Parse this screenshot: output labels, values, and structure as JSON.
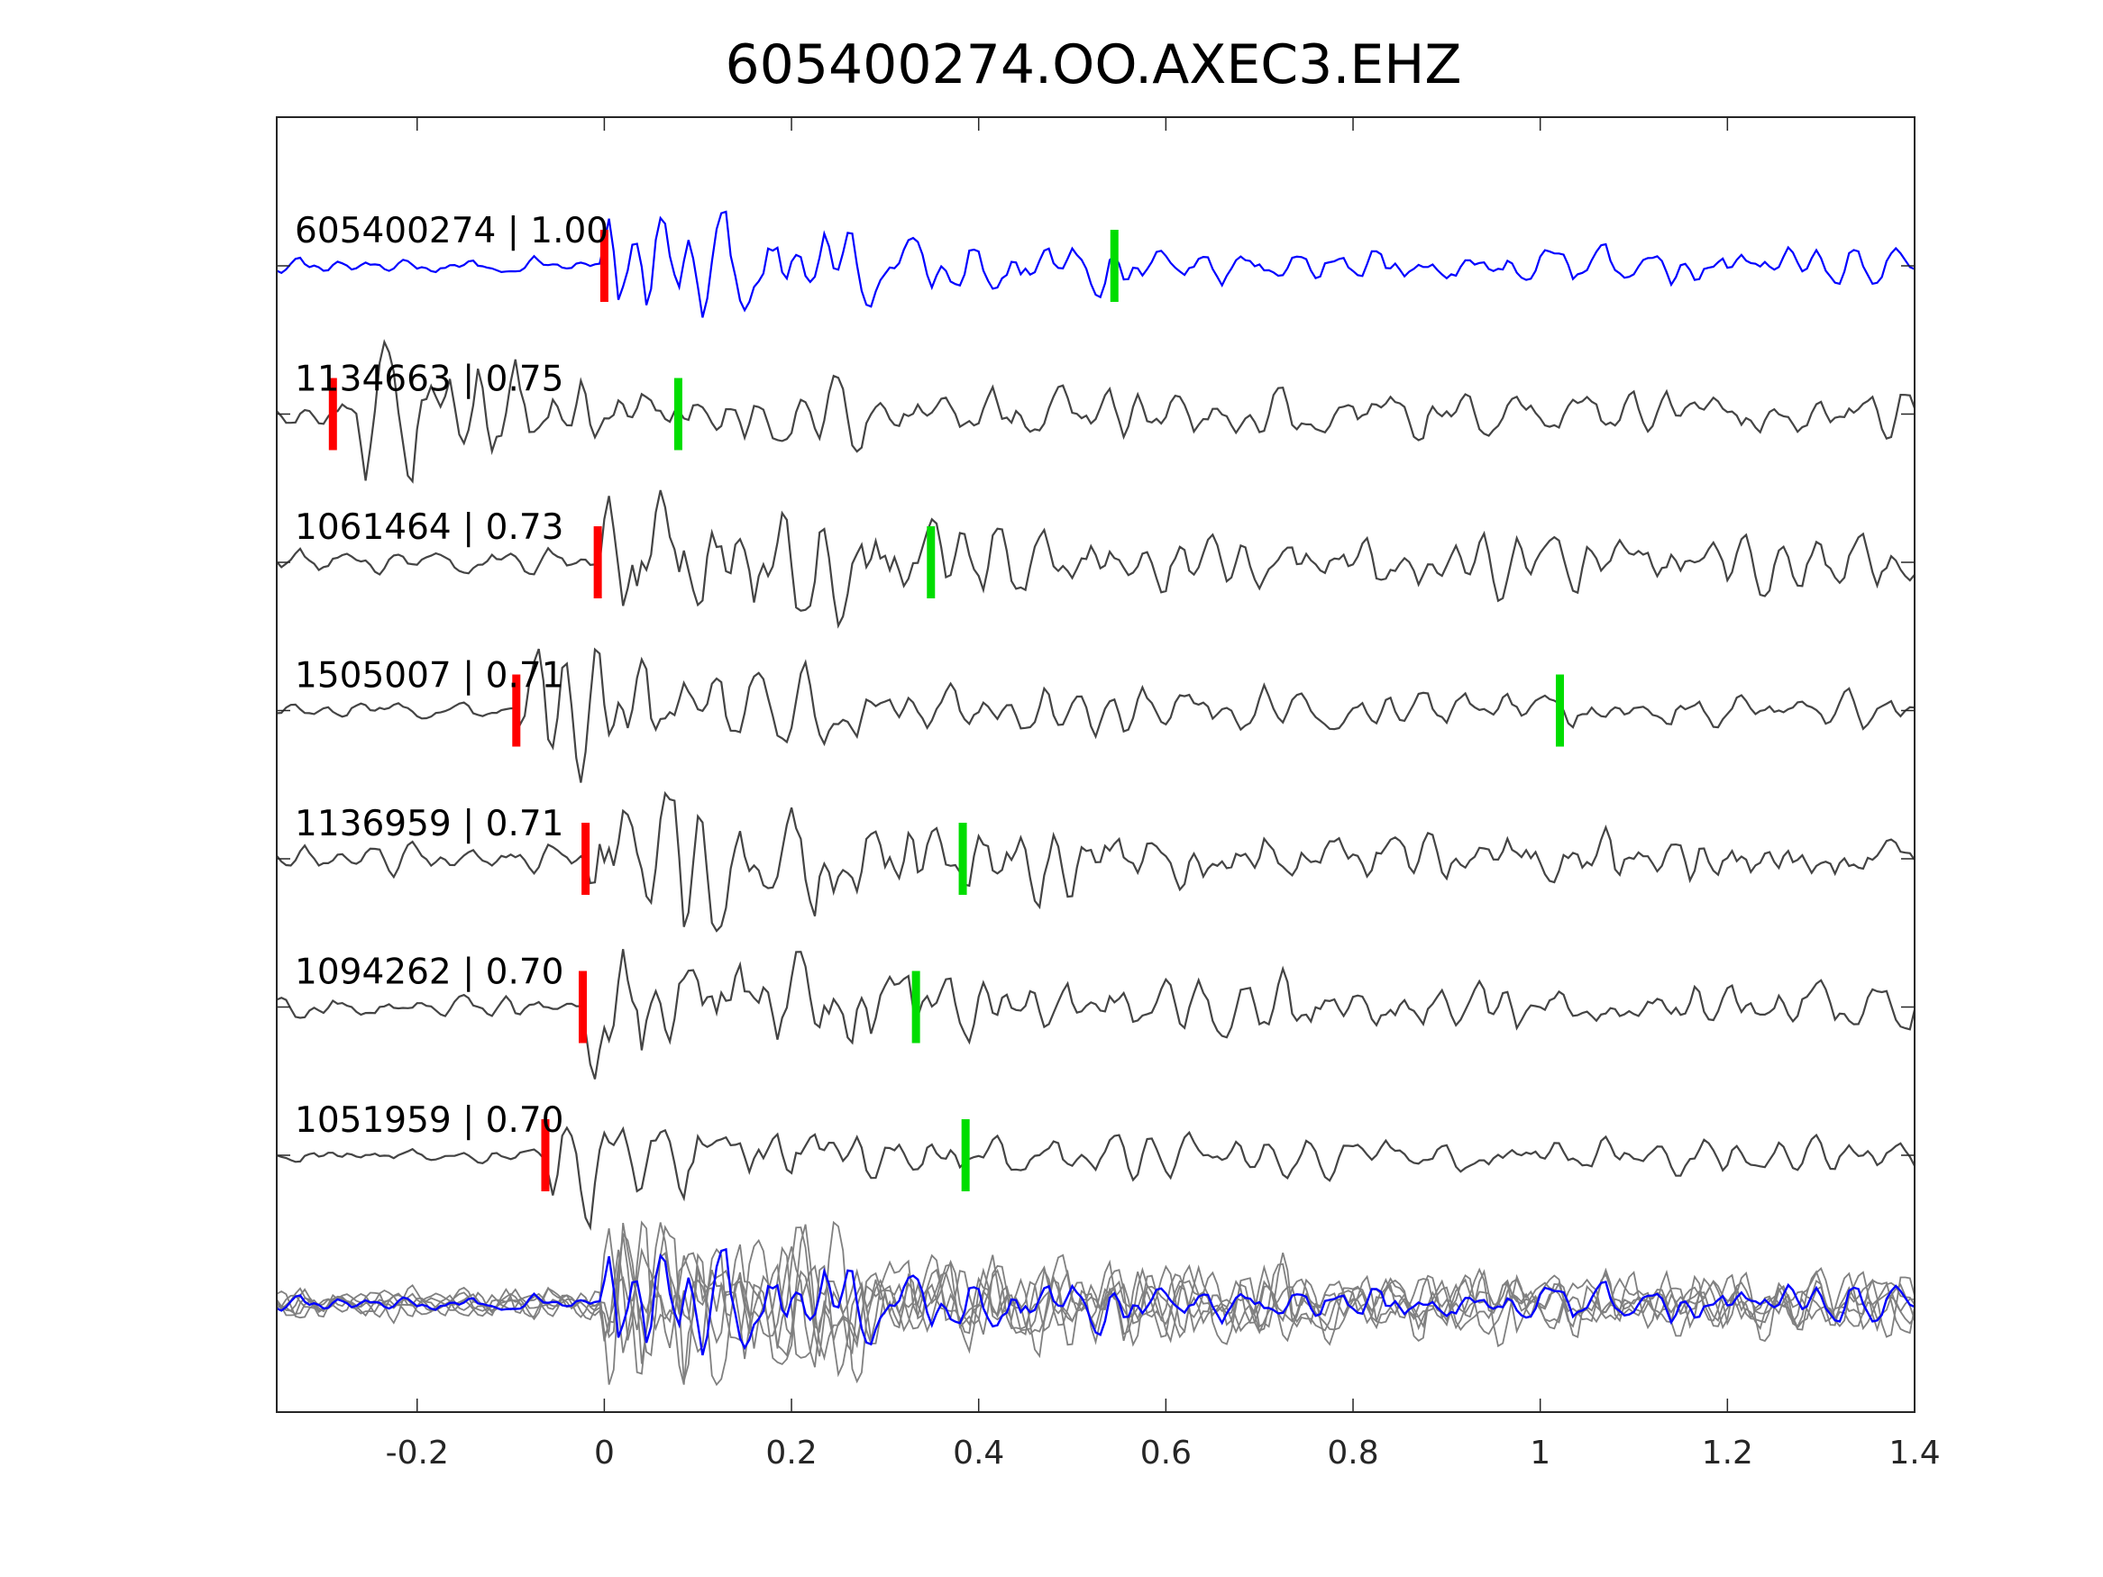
{
  "chart_data": {
    "type": "line",
    "title": "605400274.OO.AXEC3.EHZ",
    "xlabel": "",
    "ylabel": "",
    "xlim": [
      -0.35,
      1.4
    ],
    "xticks": [
      "-0.2",
      "0",
      "0.2",
      "0.4",
      "0.6",
      "0.8",
      "1",
      "1.2",
      "1.4"
    ],
    "xtick_values": [
      -0.2,
      0,
      0.2,
      0.4,
      0.6,
      0.8,
      1,
      1.2,
      1.4
    ],
    "grid": false,
    "colors": {
      "template": "#0000ff",
      "trace": "#444444",
      "stack": "#808080",
      "p_pick": "#ff0000",
      "s_pick": "#00dd00",
      "axis": "#262626"
    },
    "traces": [
      {
        "label": "605400274 | 1.00",
        "id": "605400274",
        "cc": 1.0,
        "template": true,
        "p_pick": 0.0,
        "s_pick": 0.545
      },
      {
        "label": "1134663 | 0.75",
        "id": "1134663",
        "cc": 0.75,
        "template": false,
        "p_pick": -0.29,
        "s_pick": 0.079
      },
      {
        "label": "1061464 | 0.73",
        "id": "1061464",
        "cc": 0.73,
        "template": false,
        "p_pick": -0.007,
        "s_pick": 0.349
      },
      {
        "label": "1505007 | 0.71",
        "id": "1505007",
        "cc": 0.71,
        "template": false,
        "p_pick": -0.094,
        "s_pick": 1.021
      },
      {
        "label": "1136959 | 0.71",
        "id": "1136959",
        "cc": 0.71,
        "template": false,
        "p_pick": -0.02,
        "s_pick": 0.383
      },
      {
        "label": "1094262 | 0.70",
        "id": "1094262",
        "cc": 0.7,
        "template": false,
        "p_pick": -0.023,
        "s_pick": 0.333
      },
      {
        "label": "1051959 | 0.70",
        "id": "1051959",
        "cc": 0.7,
        "template": false,
        "p_pick": -0.063,
        "s_pick": 0.386
      }
    ]
  }
}
